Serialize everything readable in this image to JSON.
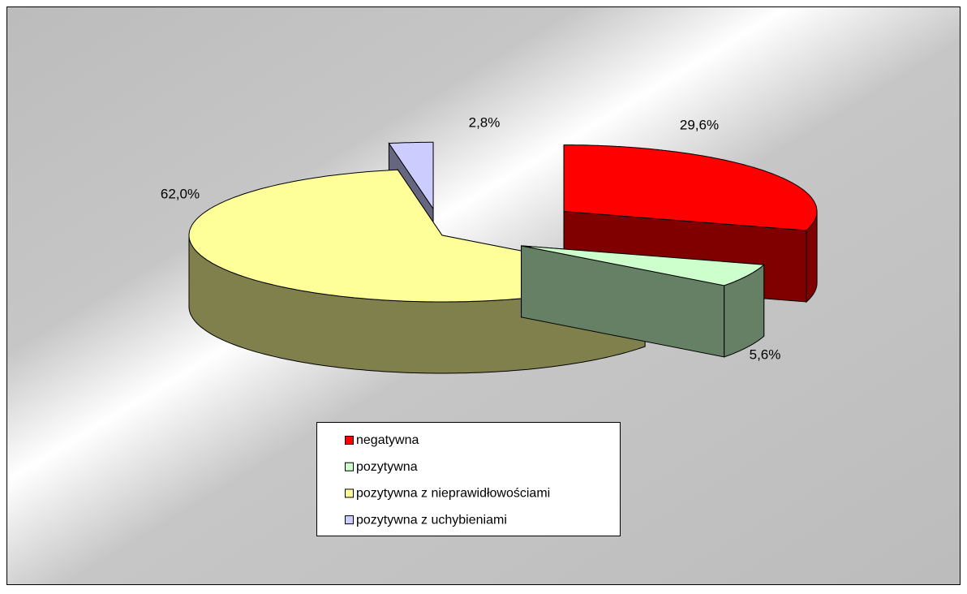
{
  "chart_data": {
    "type": "pie3d",
    "categories": [
      "negatywna",
      "pozytywna",
      "pozytywna z nieprawidłowościami",
      "pozytywna z uchybieniami"
    ],
    "values": [
      29.6,
      5.6,
      62.0,
      2.8
    ],
    "value_labels": [
      "29,6%",
      "5,6%",
      "62,0%",
      "2,8%"
    ],
    "colors": [
      "#ff0000",
      "#ccffcc",
      "#ffff99",
      "#ccccff"
    ],
    "legend": "bottom"
  }
}
